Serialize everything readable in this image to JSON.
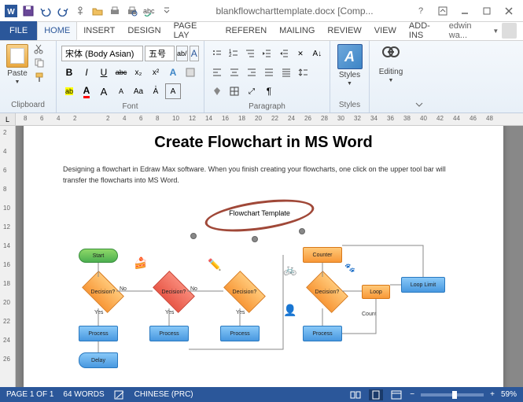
{
  "titlebar": {
    "filename": "blankflowcharttemplate.docx [Comp...",
    "qat_icons": [
      "word-icon",
      "save-icon",
      "undo-icon",
      "redo-icon",
      "touch-icon",
      "open-icon",
      "print-icon",
      "print-preview-icon",
      "spelling-icon",
      "dropdown-icon"
    ]
  },
  "tabs": {
    "file": "FILE",
    "items": [
      "HOME",
      "INSERT",
      "DESIGN",
      "PAGE LAY",
      "REFEREN",
      "MAILING",
      "REVIEW",
      "VIEW",
      "ADD-INS"
    ],
    "active": 0,
    "user": "edwin wa..."
  },
  "ribbon": {
    "clipboard": {
      "label": "Clipboard",
      "paste": "Paste"
    },
    "font": {
      "label": "Font",
      "family": "宋体 (Body Asian)",
      "size": "五号",
      "row1": [
        "B",
        "I",
        "U",
        "abc",
        "x₂",
        "x²",
        "clear"
      ],
      "row2": [
        "highlight",
        "color",
        "A",
        "A",
        "Aa",
        "grow",
        "shrink"
      ]
    },
    "paragraph": {
      "label": "Paragraph"
    },
    "styles": {
      "label": "Styles",
      "btn": "Styles"
    },
    "editing": {
      "label": "",
      "btn": "Editing"
    }
  },
  "ruler": {
    "h_marks": [
      8,
      6,
      4,
      2,
      "",
      2,
      4,
      6,
      8,
      10,
      12,
      14,
      16,
      18,
      20,
      22,
      24,
      26,
      28,
      30,
      32,
      34,
      36,
      38,
      40,
      42,
      44,
      46,
      48
    ],
    "v_marks": [
      2,
      4,
      6,
      8,
      10,
      12,
      14,
      16,
      18,
      20,
      22,
      24,
      26
    ]
  },
  "document": {
    "title": "Create Flowchart in MS Word",
    "body": "Designing a flowchart in Edraw Max software. When you finish creating your flowcharts, one click on the upper tool bar will transfer the flowcharts into MS Word.",
    "flowchart": {
      "oval_title": "Flowchart Template",
      "shapes": {
        "start": "Start",
        "decision": "Decision?",
        "process": "Process",
        "delay": "Delay",
        "counter": "Counter",
        "loop": "Loop",
        "looplimit": "Loop Limit",
        "count": "Count"
      },
      "labels": {
        "yes": "Yes",
        "no": "No"
      },
      "colors": {
        "green": "#4caf50",
        "orange": "#f89838",
        "red": "#e85848",
        "blue": "#4898e0",
        "ring": "#a04838"
      }
    }
  },
  "statusbar": {
    "page": "PAGE 1 OF 1",
    "words": "64 WORDS",
    "lang": "CHINESE (PRC)",
    "zoom": "59%"
  }
}
